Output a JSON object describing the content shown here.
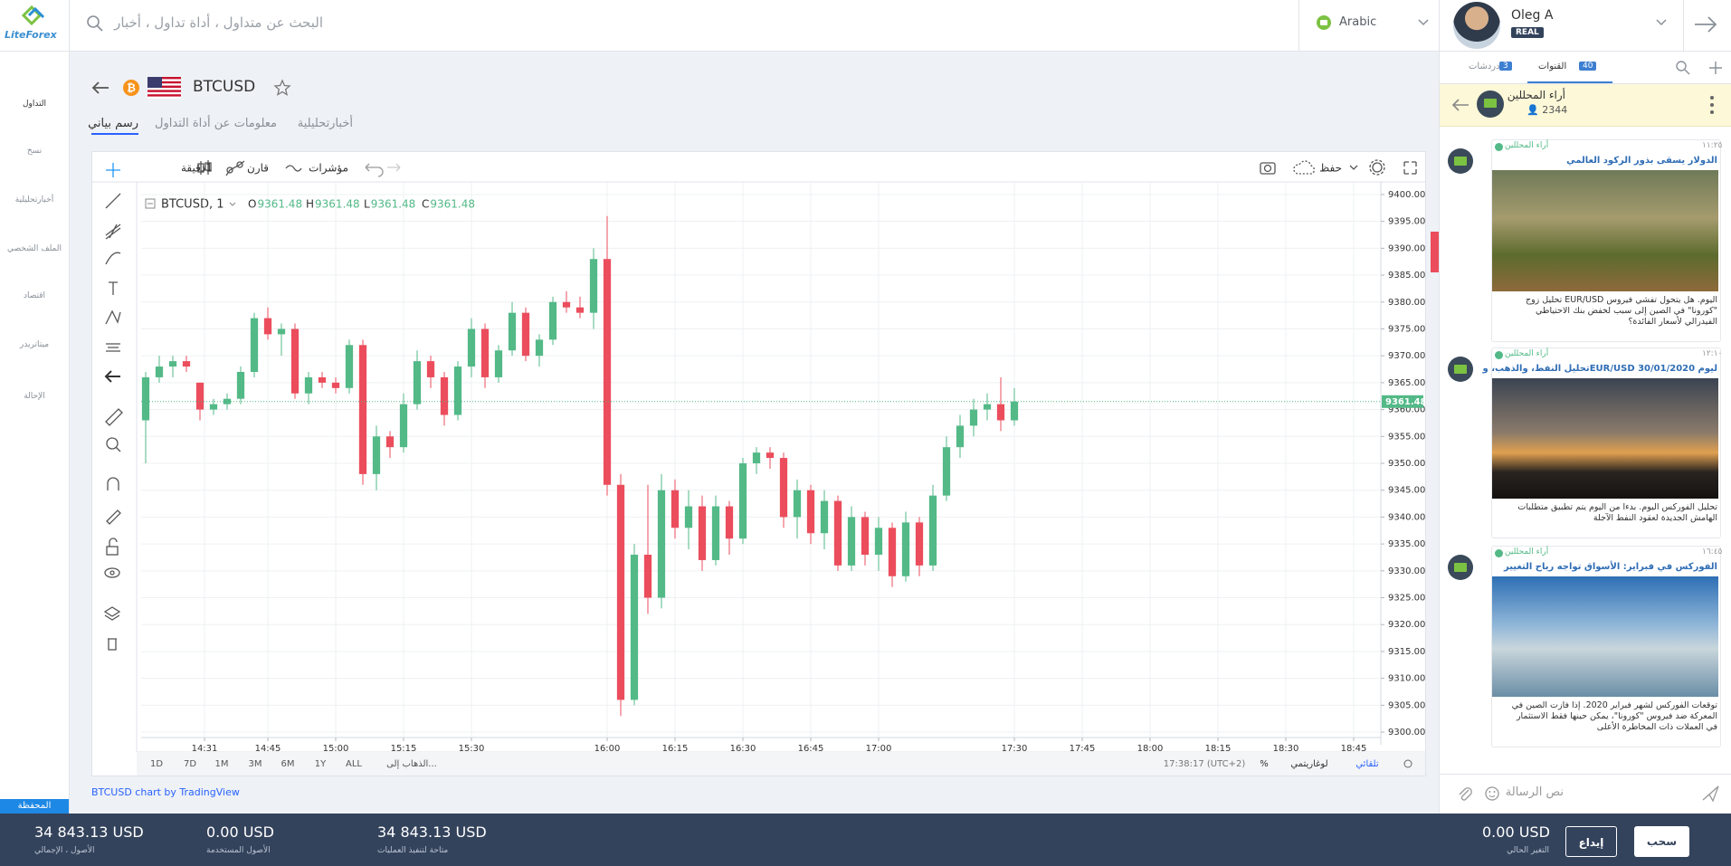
{
  "ui": {
    "logo": "LiteForex",
    "search_placeholder": "البحث عن متداول ، أداة تداول ، أخبار",
    "language": "Arabic",
    "user": {
      "name": "Oleg A",
      "account": "REAL"
    },
    "nav": [
      "التداول",
      "نسخ",
      "أخبارتحليلية",
      "الملف الشخصي",
      "اقتصاد",
      "ميتاتريدر",
      "الإحالة"
    ],
    "symbol": "BTCUSD",
    "tabs": [
      "رسم بياني",
      "معلومات عن أداة التداول",
      "أخبارتحليلية"
    ],
    "toolbar": {
      "interval": "1دقيقة",
      "compare": "قارن",
      "indicators": "مؤشرات",
      "save": "حفظ"
    },
    "ranges": [
      "1D",
      "7D",
      "1M",
      "3M",
      "6M",
      "1Y",
      "ALL"
    ],
    "goto": "الذهاب إلى...",
    "clock": "17:38:17 (UTC+2)",
    "percent": "%",
    "log": "لوغاريتمي",
    "auto": "تلقائي",
    "credit": "BTCUSD chart by TradingView",
    "chat": {
      "tabs": [
        {
          "label": "دردشات",
          "count": 3
        },
        {
          "label": "القنوات",
          "count": 40
        }
      ],
      "channel": "أراء المحللين",
      "members": 2344,
      "posts": [
        {
          "author": "أراء المحللين",
          "time": "١١:٢٥",
          "title": "الدولار يسقى بذور الركود العالمي",
          "lines": [
            "اليوم. هل يتحول تفشي فيروس EUR/USD تحليل زوج",
            "\"كورونا\" في الصين إلى سبب لخفض بنك الاحتياطي",
            "الفيدرالي لأسعار الفائدة؟"
          ]
        },
        {
          "author": "أراء المحللين",
          "time": "١٢:١٠",
          "title": "ليوم EUR/USD 30/01/2020تحليل النفط، والذهب، و",
          "lines": [
            "تحليل الفوركس اليوم. بدءا من اليوم يتم تطبيق متطلبات",
            "الهامش الجديدة لعقود النفط الآجلة"
          ]
        },
        {
          "author": "أراء المحللين",
          "time": "١٦:٤٥",
          "title": "الفوركس في فبراير: الأسواق تواجه رياح التغيير",
          "lines": [
            "توقعات الفوركس لشهر فبراير 2020. إذا فازت الصين في",
            "المعركة ضد فيروس \"كورونا\"، يمكن حينها فقط الاستثمار",
            "في العملات ذات المخاطرة الأعلى"
          ]
        }
      ],
      "input": "نص الرسالة"
    },
    "portfolio": "المحفظة",
    "account": [
      {
        "value": "34 843.13 USD",
        "label": "الأصول ، الإجمالي"
      },
      {
        "value": "0.00 USD",
        "label": "الأصول المستخدمة"
      },
      {
        "value": "34 843.13 USD",
        "label": "متاحة لتنفيذ العمليات"
      },
      {
        "value": "0.00 USD",
        "label": "التغير الحالي"
      }
    ],
    "buttons": [
      "إيداع",
      "سحب"
    ]
  },
  "chart_data": {
    "type": "candlestick",
    "symbol_label": "BTCUSD, 1",
    "ohlc": [
      {
        "label": "O",
        "value": 9361.48
      },
      {
        "label": "H",
        "value": 9361.48
      },
      {
        "label": "L",
        "value": 9361.48
      },
      {
        "label": "C",
        "value": 9361.48
      }
    ],
    "up_color": "#53b987",
    "down_color": "#eb4d5c",
    "last_price": 9361.48,
    "grid": true,
    "xlim": [
      "14:17",
      "18:51"
    ],
    "ylim": [
      9299,
      9401
    ],
    "xticks": [
      "14:31",
      "14:45",
      "15:00",
      "15:15",
      "15:30",
      "16:00",
      "16:15",
      "16:30",
      "16:45",
      "17:00",
      "17:30",
      "17:45",
      "18:00",
      "18:15",
      "18:30",
      "18:45"
    ],
    "yticks": [
      {
        "value": 9300,
        "label": "9300.00"
      },
      {
        "value": 9305,
        "label": "9305.00"
      },
      {
        "value": 9310,
        "label": "9310.00"
      },
      {
        "value": 9315,
        "label": "9315.00"
      },
      {
        "value": 9320,
        "label": "9320.00"
      },
      {
        "value": 9325,
        "label": "9325.00"
      },
      {
        "value": 9330,
        "label": "9330.00"
      },
      {
        "value": 9335,
        "label": "9335.00"
      },
      {
        "value": 9340,
        "label": "9340.00"
      },
      {
        "value": 9345,
        "label": "9345.00"
      },
      {
        "value": 9350,
        "label": "9350.00"
      },
      {
        "value": 9355,
        "label": "9355.00"
      },
      {
        "value": 9360,
        "label": "9360.00"
      },
      {
        "value": 9365,
        "label": "9365.00"
      },
      {
        "value": 9370,
        "label": "9370.00"
      },
      {
        "value": 9375,
        "label": "9375.00"
      },
      {
        "value": 9380,
        "label": "9380.00"
      },
      {
        "value": 9385,
        "label": "9385.00"
      },
      {
        "value": 9390,
        "label": "9390.00"
      },
      {
        "value": 9395,
        "label": "9395.00"
      },
      {
        "value": 9400,
        "label": "9400.00"
      }
    ],
    "x": [
      "14:18",
      "14:21",
      "14:24",
      "14:27",
      "14:30",
      "14:33",
      "14:36",
      "14:39",
      "14:42",
      "14:45",
      "14:48",
      "14:51",
      "14:54",
      "14:57",
      "15:00",
      "15:03",
      "15:06",
      "15:09",
      "15:12",
      "15:15",
      "15:18",
      "15:21",
      "15:24",
      "15:27",
      "15:30",
      "15:33",
      "15:36",
      "15:39",
      "15:42",
      "15:45",
      "15:48",
      "15:51",
      "15:54",
      "15:57",
      "16:00",
      "16:03",
      "16:06",
      "16:09",
      "16:12",
      "16:15",
      "16:18",
      "16:21",
      "16:24",
      "16:27",
      "16:30",
      "16:33",
      "16:36",
      "16:39",
      "16:42",
      "16:45",
      "16:48",
      "16:51",
      "16:54",
      "16:57",
      "17:00",
      "17:03",
      "17:06",
      "17:09",
      "17:12",
      "17:15",
      "17:18",
      "17:21",
      "17:24",
      "17:27",
      "17:30"
    ],
    "open": [
      9358,
      9366,
      9368,
      9369,
      9365,
      9360,
      9361,
      9362,
      9367,
      9377,
      9374,
      9375,
      9363,
      9366,
      9365,
      9364,
      9372,
      9348,
      9355,
      9353,
      9361,
      9369,
      9366,
      9359,
      9368,
      9375,
      9366,
      9371,
      9378,
      9370,
      9373,
      9380,
      9379,
      9378,
      9388,
      9346,
      9306,
      9333,
      9325,
      9345,
      9338,
      9342,
      9332,
      9342,
      9336,
      9350,
      9352,
      9351,
      9340,
      9345,
      9337,
      9343,
      9331,
      9340,
      9333,
      9338,
      9329,
      9339,
      9331,
      9344,
      9353,
      9357,
      9360,
      9361,
      9358
    ],
    "high": [
      9367,
      9370,
      9370,
      9370,
      9365,
      9362,
      9363,
      9368,
      9378,
      9379,
      9376,
      9376,
      9367,
      9367,
      9366,
      9373,
      9373,
      9357,
      9356,
      9363,
      9371,
      9370,
      9367,
      9369,
      9377,
      9376,
      9372,
      9380,
      9379,
      9374,
      9381,
      9382,
      9381,
      9390,
      9396,
      9348,
      9335,
      9346,
      9348,
      9347,
      9345,
      9344,
      9344,
      9343,
      9351,
      9353,
      9353,
      9352,
      9347,
      9346,
      9345,
      9344,
      9342,
      9341,
      9340,
      9339,
      9341,
      9340,
      9346,
      9355,
      9359,
      9362,
      9363,
      9366,
      9364
    ],
    "low": [
      9350,
      9365,
      9366,
      9367,
      9358,
      9359,
      9360,
      9361,
      9366,
      9373,
      9370,
      9362,
      9361,
      9364,
      9363,
      9363,
      9346,
      9345,
      9351,
      9352,
      9360,
      9364,
      9357,
      9358,
      9366,
      9364,
      9365,
      9370,
      9369,
      9368,
      9372,
      9378,
      9377,
      9375,
      9344,
      9303,
      9305,
      9322,
      9323,
      9336,
      9334,
      9330,
      9331,
      9333,
      9335,
      9348,
      9349,
      9338,
      9336,
      9335,
      9334,
      9330,
      9330,
      9331,
      9330,
      9327,
      9328,
      9329,
      9330,
      9343,
      9351,
      9355,
      9358,
      9356,
      9357
    ],
    "close": [
      9366,
      9368,
      9369,
      9368,
      9360,
      9361,
      9362,
      9367,
      9377,
      9374,
      9375,
      9363,
      9366,
      9365,
      9364,
      9372,
      9348,
      9355,
      9353,
      9361,
      9369,
      9366,
      9359,
      9368,
      9375,
      9366,
      9371,
      9378,
      9370,
      9373,
      9380,
      9379,
      9378,
      9388,
      9346,
      9306,
      9333,
      9325,
      9345,
      9338,
      9342,
      9332,
      9342,
      9336,
      9350,
      9352,
      9351,
      9340,
      9345,
      9337,
      9343,
      9331,
      9340,
      9333,
      9338,
      9329,
      9339,
      9331,
      9344,
      9353,
      9357,
      9360,
      9361,
      9358,
      9361.48
    ]
  }
}
